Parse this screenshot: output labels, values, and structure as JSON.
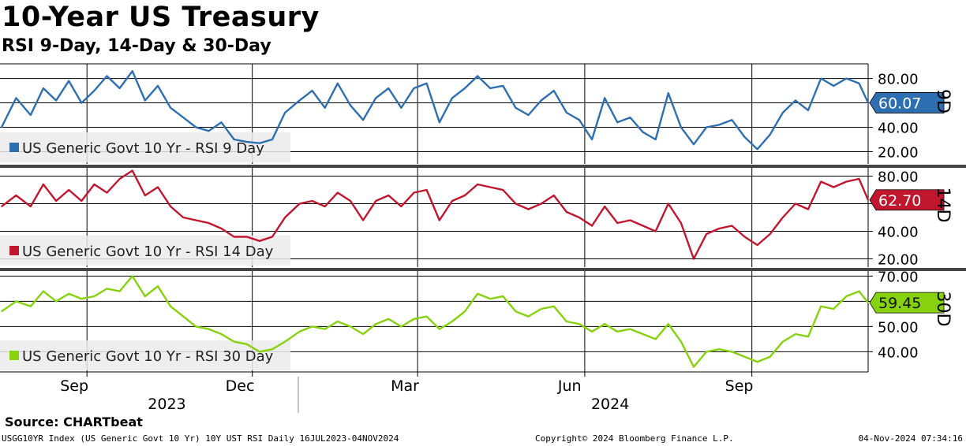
{
  "title": "10-Year US Treasury",
  "subtitle": "RSI 9-Day, 14-Day & 30-Day",
  "source": "Source: CHARTbeat",
  "footer": {
    "left": "USGG10YR Index (US Generic Govt 10 Yr) 10Y UST RSI  Daily 16JUL2023-04NOV2024",
    "middle": "Copyright© 2024 Bloomberg Finance L.P.",
    "right": "04-Nov-2024 07:34:16"
  },
  "colors": {
    "rsi9": "#2e6fb2",
    "rsi14": "#c0172f",
    "rsi30": "#86d20e"
  },
  "chart_data": {
    "type": "line",
    "x_months": [
      {
        "label": "Sep",
        "date": "2023-09-01"
      },
      {
        "label": "Dec",
        "date": "2023-12-01"
      },
      {
        "label": "Mar",
        "date": "2024-03-01"
      },
      {
        "label": "Jun",
        "date": "2024-06-01"
      },
      {
        "label": "Sep",
        "date": "2024-09-01"
      }
    ],
    "x_years": [
      {
        "label": "2023",
        "date": "2023-10-15"
      },
      {
        "label": "2024",
        "date": "2024-06-15"
      }
    ],
    "xlim": [
      "2023-07-16",
      "2024-11-04"
    ],
    "panels": [
      {
        "id": "rsi9",
        "axis_label": "9D",
        "legend": "US Generic Govt 10 Yr - RSI 9 Day",
        "color": "#2e6fb2",
        "last_value": "60.07",
        "ylim": [
          10,
          92
        ],
        "yticks": [
          {
            "v": 20,
            "label": "20.00"
          },
          {
            "v": 40,
            "label": "40.00"
          },
          {
            "v": 60,
            "label": ""
          },
          {
            "v": 80,
            "label": "80.00"
          }
        ],
        "x": [
          "2023-07-16",
          "2023-07-24",
          "2023-08-01",
          "2023-08-08",
          "2023-08-15",
          "2023-08-22",
          "2023-08-29",
          "2023-09-05",
          "2023-09-12",
          "2023-09-19",
          "2023-09-26",
          "2023-10-03",
          "2023-10-10",
          "2023-10-17",
          "2023-10-24",
          "2023-10-31",
          "2023-11-07",
          "2023-11-14",
          "2023-11-21",
          "2023-11-28",
          "2023-12-05",
          "2023-12-12",
          "2023-12-19",
          "2023-12-27",
          "2024-01-03",
          "2024-01-10",
          "2024-01-17",
          "2024-01-24",
          "2024-01-31",
          "2024-02-07",
          "2024-02-14",
          "2024-02-21",
          "2024-02-28",
          "2024-03-06",
          "2024-03-13",
          "2024-03-20",
          "2024-03-27",
          "2024-04-03",
          "2024-04-10",
          "2024-04-17",
          "2024-04-24",
          "2024-05-01",
          "2024-05-08",
          "2024-05-15",
          "2024-05-22",
          "2024-05-29",
          "2024-06-05",
          "2024-06-12",
          "2024-06-19",
          "2024-06-26",
          "2024-07-03",
          "2024-07-10",
          "2024-07-17",
          "2024-07-24",
          "2024-07-31",
          "2024-08-07",
          "2024-08-14",
          "2024-08-21",
          "2024-08-28",
          "2024-09-04",
          "2024-09-11",
          "2024-09-18",
          "2024-09-25",
          "2024-10-02",
          "2024-10-09",
          "2024-10-16",
          "2024-10-23",
          "2024-10-30",
          "2024-11-04"
        ],
        "values": [
          40,
          64,
          50,
          72,
          62,
          78,
          60,
          70,
          82,
          72,
          86,
          62,
          74,
          56,
          48,
          40,
          37,
          44,
          30,
          28,
          27,
          30,
          52,
          62,
          70,
          56,
          76,
          58,
          46,
          64,
          72,
          56,
          72,
          76,
          44,
          64,
          72,
          82,
          72,
          74,
          56,
          50,
          62,
          70,
          52,
          46,
          30,
          64,
          44,
          48,
          36,
          30,
          68,
          40,
          26,
          40,
          42,
          46,
          32,
          22,
          34,
          52,
          62,
          54,
          80,
          74,
          80,
          76,
          60.07
        ]
      },
      {
        "id": "rsi14",
        "axis_label": "14D",
        "legend": "US Generic Govt 10 Yr - RSI 14 Day",
        "color": "#c0172f",
        "last_value": "62.70",
        "ylim": [
          14,
          86
        ],
        "yticks": [
          {
            "v": 20,
            "label": "20.00"
          },
          {
            "v": 40,
            "label": "40.00"
          },
          {
            "v": 60,
            "label": ""
          },
          {
            "v": 80,
            "label": "80.00"
          }
        ],
        "x": [
          "2023-07-16",
          "2023-07-24",
          "2023-08-01",
          "2023-08-08",
          "2023-08-15",
          "2023-08-22",
          "2023-08-29",
          "2023-09-05",
          "2023-09-12",
          "2023-09-19",
          "2023-09-26",
          "2023-10-03",
          "2023-10-10",
          "2023-10-17",
          "2023-10-24",
          "2023-10-31",
          "2023-11-07",
          "2023-11-14",
          "2023-11-21",
          "2023-11-28",
          "2023-12-05",
          "2023-12-12",
          "2023-12-19",
          "2023-12-27",
          "2024-01-03",
          "2024-01-10",
          "2024-01-17",
          "2024-01-24",
          "2024-01-31",
          "2024-02-07",
          "2024-02-14",
          "2024-02-21",
          "2024-02-28",
          "2024-03-06",
          "2024-03-13",
          "2024-03-20",
          "2024-03-27",
          "2024-04-03",
          "2024-04-10",
          "2024-04-17",
          "2024-04-24",
          "2024-05-01",
          "2024-05-08",
          "2024-05-15",
          "2024-05-22",
          "2024-05-29",
          "2024-06-05",
          "2024-06-12",
          "2024-06-19",
          "2024-06-26",
          "2024-07-03",
          "2024-07-10",
          "2024-07-17",
          "2024-07-24",
          "2024-07-31",
          "2024-08-07",
          "2024-08-14",
          "2024-08-21",
          "2024-08-28",
          "2024-09-04",
          "2024-09-11",
          "2024-09-18",
          "2024-09-25",
          "2024-10-02",
          "2024-10-09",
          "2024-10-16",
          "2024-10-23",
          "2024-10-30",
          "2024-11-04"
        ],
        "values": [
          58,
          66,
          58,
          74,
          62,
          70,
          62,
          74,
          68,
          78,
          84,
          66,
          72,
          58,
          50,
          48,
          46,
          42,
          36,
          36,
          33,
          36,
          50,
          60,
          62,
          58,
          68,
          62,
          48,
          62,
          66,
          58,
          68,
          70,
          48,
          62,
          66,
          74,
          72,
          70,
          60,
          56,
          60,
          66,
          54,
          50,
          44,
          58,
          46,
          48,
          44,
          40,
          60,
          46,
          20,
          38,
          42,
          44,
          36,
          30,
          38,
          50,
          60,
          56,
          76,
          72,
          76,
          78,
          62.7
        ]
      },
      {
        "id": "rsi30",
        "axis_label": "30D",
        "legend": "US Generic Govt 10 Yr - RSI 30 Day",
        "color": "#86d20e",
        "last_value": "59.45",
        "ylim": [
          32,
          72
        ],
        "yticks": [
          {
            "v": 40,
            "label": "40.00"
          },
          {
            "v": 50,
            "label": "50.00"
          },
          {
            "v": 60,
            "label": "60.00"
          },
          {
            "v": 70,
            "label": "70.00"
          }
        ],
        "x": [
          "2023-07-16",
          "2023-07-24",
          "2023-08-01",
          "2023-08-08",
          "2023-08-15",
          "2023-08-22",
          "2023-08-29",
          "2023-09-05",
          "2023-09-12",
          "2023-09-19",
          "2023-09-26",
          "2023-10-03",
          "2023-10-10",
          "2023-10-17",
          "2023-10-24",
          "2023-10-31",
          "2023-11-07",
          "2023-11-14",
          "2023-11-21",
          "2023-11-28",
          "2023-12-05",
          "2023-12-12",
          "2023-12-19",
          "2023-12-27",
          "2024-01-03",
          "2024-01-10",
          "2024-01-17",
          "2024-01-24",
          "2024-01-31",
          "2024-02-07",
          "2024-02-14",
          "2024-02-21",
          "2024-02-28",
          "2024-03-06",
          "2024-03-13",
          "2024-03-20",
          "2024-03-27",
          "2024-04-03",
          "2024-04-10",
          "2024-04-17",
          "2024-04-24",
          "2024-05-01",
          "2024-05-08",
          "2024-05-15",
          "2024-05-22",
          "2024-05-29",
          "2024-06-05",
          "2024-06-12",
          "2024-06-19",
          "2024-06-26",
          "2024-07-03",
          "2024-07-10",
          "2024-07-17",
          "2024-07-24",
          "2024-07-31",
          "2024-08-07",
          "2024-08-14",
          "2024-08-21",
          "2024-08-28",
          "2024-09-04",
          "2024-09-11",
          "2024-09-18",
          "2024-09-25",
          "2024-10-02",
          "2024-10-09",
          "2024-10-16",
          "2024-10-23",
          "2024-10-30",
          "2024-11-04"
        ],
        "values": [
          56,
          60,
          58,
          64,
          60,
          63,
          61,
          62,
          65,
          64,
          70,
          62,
          66,
          58,
          54,
          50,
          49,
          47,
          44,
          43,
          40,
          41,
          44,
          48,
          50,
          49,
          52,
          50,
          47,
          51,
          53,
          50,
          53,
          54,
          49,
          52,
          56,
          63,
          61,
          62,
          56,
          54,
          57,
          58,
          52,
          51,
          48,
          51,
          48,
          49,
          47,
          45,
          51,
          44,
          34,
          40,
          41,
          40,
          38,
          36,
          38,
          44,
          47,
          46,
          58,
          57,
          62,
          64,
          59.45
        ]
      }
    ]
  }
}
